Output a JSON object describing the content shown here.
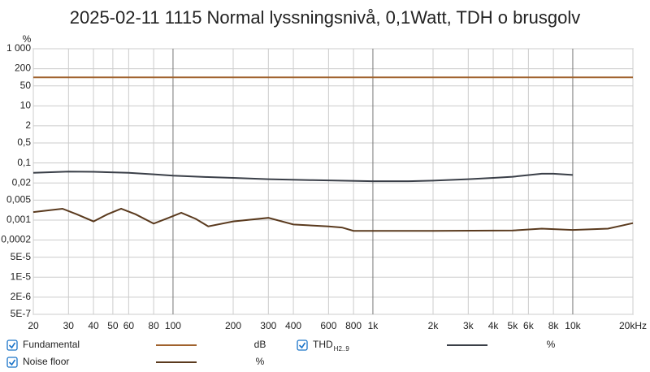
{
  "chart_data": {
    "type": "line",
    "title": "2025-02-11 1115 Normal lyssningsnivå, 0,1Watt, TDH o brusgolv",
    "y_label": "%",
    "log_x": true,
    "log_y": true,
    "grid": true,
    "xlim": [
      20,
      20000
    ],
    "ylim": [
      5e-07,
      1000
    ],
    "xticks": [
      20,
      30,
      40,
      50,
      60,
      80,
      100,
      200,
      300,
      400,
      600,
      800,
      {
        "value": 1000,
        "label": "1k"
      },
      {
        "value": 2000,
        "label": "2k"
      },
      {
        "value": 3000,
        "label": "3k"
      },
      {
        "value": 4000,
        "label": "4k"
      },
      {
        "value": 5000,
        "label": "5k"
      },
      {
        "value": 6000,
        "label": "6k"
      },
      {
        "value": 8000,
        "label": "8k"
      },
      {
        "value": 10000,
        "label": "10k"
      },
      {
        "value": 20000,
        "label": "20kHz"
      }
    ],
    "yticks": [
      {
        "value": 1000,
        "label": "1 000"
      },
      200,
      50,
      10,
      2,
      {
        "value": 0.5,
        "label": "0,5"
      },
      {
        "value": 0.1,
        "label": "0,1"
      },
      {
        "value": 0.02,
        "label": "0,02"
      },
      {
        "value": 0.005,
        "label": "0,005"
      },
      {
        "value": 0.001,
        "label": "0,001"
      },
      {
        "value": 0.0002,
        "label": "0,0002"
      },
      {
        "value": 5e-05,
        "label": "5E-5"
      },
      {
        "value": 1e-05,
        "label": "1E-5"
      },
      {
        "value": 2e-06,
        "label": "2E-6"
      },
      {
        "value": 5e-07,
        "label": "5E-7"
      }
    ],
    "series": [
      {
        "name": "Fundamental",
        "unit": "dB",
        "color": "#a0622d",
        "x": [
          20,
          20000
        ],
        "values": [
          100,
          100
        ]
      },
      {
        "name": "THD",
        "name_sub": "H2..9",
        "unit": "%",
        "color": "#3a3f48",
        "x": [
          20,
          30,
          40,
          60,
          80,
          100,
          150,
          200,
          300,
          500,
          1000,
          1500,
          2000,
          3000,
          4000,
          5000,
          7000,
          8000,
          10000
        ],
        "values": [
          0.045,
          0.05,
          0.049,
          0.045,
          0.04,
          0.036,
          0.032,
          0.03,
          0.027,
          0.025,
          0.023,
          0.023,
          0.024,
          0.027,
          0.03,
          0.033,
          0.042,
          0.042,
          0.038
        ]
      },
      {
        "name": "Noise floor",
        "unit": "%",
        "color": "#5a3a1e",
        "x": [
          20,
          24,
          28,
          33,
          40,
          47,
          55,
          65,
          80,
          95,
          110,
          130,
          150,
          200,
          300,
          400,
          600,
          700,
          800,
          1000,
          2000,
          5000,
          7000,
          10000,
          15000,
          20000
        ],
        "values": [
          0.0019,
          0.0022,
          0.0025,
          0.0016,
          0.0009,
          0.0016,
          0.0025,
          0.0016,
          0.00075,
          0.0012,
          0.0018,
          0.0011,
          0.0006,
          0.0009,
          0.0012,
          0.0007,
          0.0006,
          0.00055,
          0.00042,
          0.00042,
          0.00042,
          0.00043,
          0.0005,
          0.00045,
          0.0005,
          0.00078
        ]
      }
    ]
  }
}
